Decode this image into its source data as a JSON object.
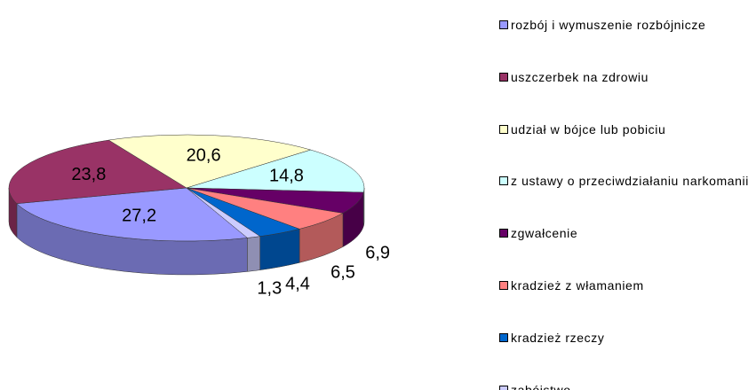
{
  "chart_data": {
    "type": "pie3d",
    "categories": [
      "rozbój i wymuszenie rozbójnicze",
      "uszczerbek na zdrowiu",
      "udział w bójce lub pobiciu",
      "z ustawy o przeciwdziałaniu narkomanii",
      "zgwałcenie",
      "kradzież z włamaniem",
      "kradzież rzeczy",
      "zabójstwo"
    ],
    "values": [
      27.2,
      23.8,
      20.6,
      14.8,
      6.9,
      6.5,
      4.4,
      1.3
    ],
    "value_labels": [
      "27,2",
      "23,8",
      "20,6",
      "14,8",
      "6,9",
      "6,5",
      "4,4",
      "1,3"
    ],
    "colors": [
      "#9999ff",
      "#993366",
      "#ffffcc",
      "#ccffff",
      "#660066",
      "#ff8080",
      "#0066cc",
      "#ccccff"
    ],
    "legend": "right"
  }
}
